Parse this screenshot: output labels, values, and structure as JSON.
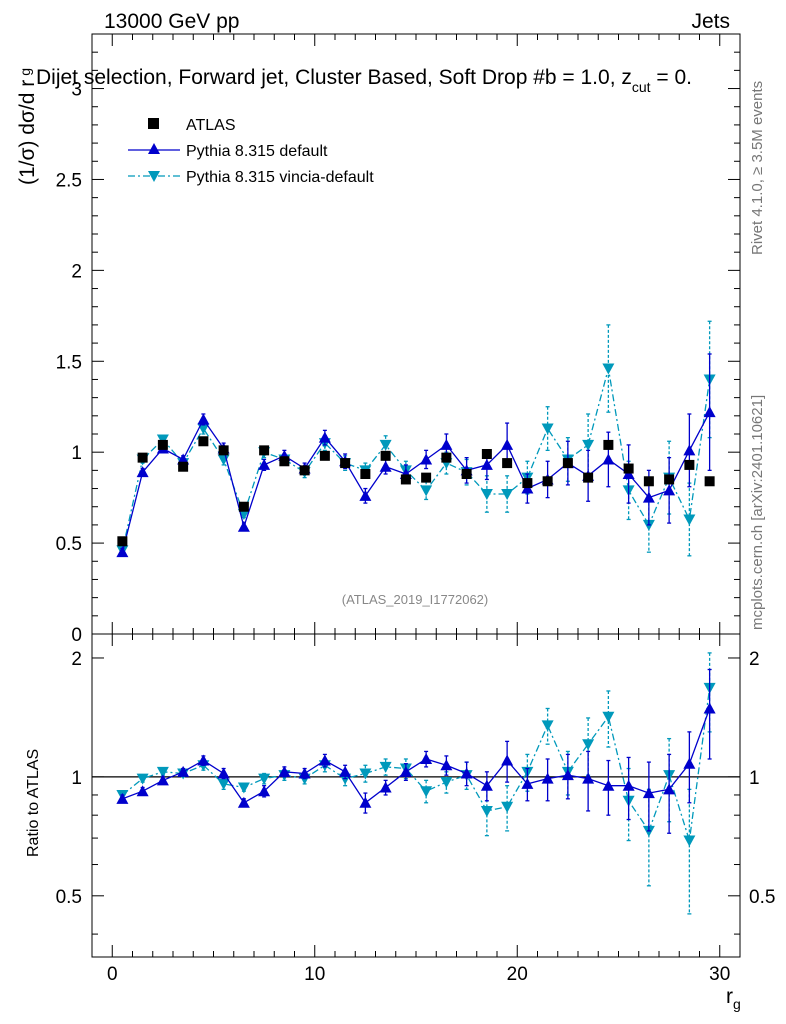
{
  "header": {
    "left": "13000 GeV pp",
    "right": "Jets",
    "title": "Dijet selection, Forward jet, Cluster Based, Soft Drop #b = 1.0, z_cut = 0.",
    "title_main": "Dijet selection, Forward jet, Cluster Based, Soft Drop #b",
    "title_eq": " = 1.0, z",
    "title_sub": "cut",
    "title_tail": " = 0.",
    "watermark": "(ATLAS_2019_I1772062)",
    "side_rivet": "Rivet 4.1.0, ≥ 3.5M events",
    "side_mcplots": "mcplots.cern.ch [arXiv:2401.10621]"
  },
  "colors": {
    "atlas": "#000000",
    "default": "#0000cc",
    "vincia": "#0099bb"
  },
  "chart_data": [
    {
      "type": "scatter",
      "panel": "main",
      "ylabel": "(1/σ) dσ/d r_g",
      "ylabel_main": "(1/σ) dσ/d r",
      "ylabel_sub": "g",
      "xlim": [
        -1,
        31
      ],
      "ylim": [
        0,
        3.3
      ],
      "yticks": [
        0,
        0.5,
        1,
        1.5,
        2,
        2.5,
        3
      ],
      "ytick_labels": [
        "0",
        "0.5",
        "1",
        "1.5",
        "2",
        "2.5",
        "3"
      ],
      "legend": [
        "ATLAS",
        "Pythia 8.315 default",
        "Pythia 8.315 vincia-default"
      ],
      "x": [
        0.5,
        1.5,
        2.5,
        3.5,
        4.5,
        5.5,
        6.5,
        7.5,
        8.5,
        9.5,
        10.5,
        11.5,
        12.5,
        13.5,
        14.5,
        15.5,
        16.5,
        17.5,
        18.5,
        19.5,
        20.5,
        21.5,
        22.5,
        23.5,
        24.5,
        25.5,
        26.5,
        27.5,
        28.5,
        29.5
      ],
      "series": [
        {
          "name": "ATLAS",
          "values": [
            0.51,
            0.97,
            1.04,
            0.92,
            1.06,
            1.01,
            0.7,
            1.01,
            0.95,
            0.9,
            0.98,
            0.94,
            0.88,
            0.98,
            0.85,
            0.86,
            0.97,
            0.88,
            0.99,
            0.94,
            0.83,
            0.84,
            0.94,
            0.86,
            1.04,
            0.91,
            0.84,
            0.85,
            0.93,
            0.84
          ],
          "errors": [
            0,
            0,
            0,
            0,
            0,
            0,
            0,
            0,
            0,
            0,
            0,
            0,
            0,
            0,
            0,
            0,
            0,
            0,
            0,
            0,
            0,
            0,
            0,
            0,
            0,
            0,
            0,
            0,
            0,
            0
          ]
        },
        {
          "name": "Pythia 8.315 default",
          "values": [
            0.45,
            0.89,
            1.02,
            0.96,
            1.18,
            1.02,
            0.59,
            0.93,
            0.98,
            0.91,
            1.08,
            0.95,
            0.76,
            0.92,
            0.88,
            0.96,
            1.04,
            0.9,
            0.93,
            1.04,
            0.8,
            0.85,
            0.94,
            0.87,
            0.96,
            0.88,
            0.75,
            0.79,
            1.01,
            1.22
          ],
          "errors": [
            0.02,
            0.02,
            0.02,
            0.02,
            0.03,
            0.03,
            0.02,
            0.03,
            0.03,
            0.03,
            0.04,
            0.04,
            0.04,
            0.04,
            0.05,
            0.05,
            0.06,
            0.07,
            0.08,
            0.12,
            0.08,
            0.1,
            0.12,
            0.14,
            0.15,
            0.16,
            0.15,
            0.18,
            0.2,
            0.32
          ]
        },
        {
          "name": "Pythia 8.315 vincia-default",
          "values": [
            0.46,
            0.96,
            1.07,
            0.94,
            1.13,
            0.96,
            0.66,
            1.0,
            0.96,
            0.89,
            1.05,
            0.94,
            0.9,
            1.04,
            0.9,
            0.79,
            0.94,
            0.89,
            0.77,
            0.77,
            0.86,
            1.13,
            0.96,
            1.04,
            1.46,
            0.79,
            0.6,
            0.86,
            0.63,
            1.4
          ],
          "errors": [
            0.02,
            0.02,
            0.02,
            0.02,
            0.03,
            0.03,
            0.02,
            0.03,
            0.03,
            0.03,
            0.04,
            0.04,
            0.04,
            0.05,
            0.05,
            0.05,
            0.06,
            0.07,
            0.1,
            0.1,
            0.09,
            0.12,
            0.12,
            0.17,
            0.24,
            0.16,
            0.15,
            0.2,
            0.2,
            0.32
          ]
        }
      ]
    },
    {
      "type": "scatter",
      "panel": "ratio",
      "ylabel": "Ratio to ATLAS",
      "xlabel": "r_g",
      "xlabel_main": "r",
      "xlabel_sub": "g",
      "xlim": [
        -1,
        31
      ],
      "ylim": [
        0.35,
        2.3
      ],
      "yticks": [
        0.5,
        1,
        2
      ],
      "ytick_labels": [
        "0.5",
        "1",
        "2"
      ],
      "xticks": [
        0,
        10,
        20,
        30
      ],
      "xtick_labels": [
        "0",
        "10",
        "20",
        "30"
      ],
      "x": [
        0.5,
        1.5,
        2.5,
        3.5,
        4.5,
        5.5,
        6.5,
        7.5,
        8.5,
        9.5,
        10.5,
        11.5,
        12.5,
        13.5,
        14.5,
        15.5,
        16.5,
        17.5,
        18.5,
        19.5,
        20.5,
        21.5,
        22.5,
        23.5,
        24.5,
        25.5,
        26.5,
        27.5,
        28.5,
        29.5
      ],
      "series": [
        {
          "name": "Pythia 8.315 default",
          "values": [
            0.88,
            0.92,
            0.98,
            1.03,
            1.1,
            1.02,
            0.86,
            0.92,
            1.03,
            1.02,
            1.1,
            1.03,
            0.86,
            0.94,
            1.03,
            1.11,
            1.07,
            1.02,
            0.95,
            1.1,
            0.96,
            0.99,
            1.01,
            0.99,
            0.95,
            0.95,
            0.91,
            0.93,
            1.08,
            1.49
          ],
          "errors": [
            0.02,
            0.02,
            0.02,
            0.02,
            0.03,
            0.03,
            0.02,
            0.03,
            0.03,
            0.03,
            0.04,
            0.04,
            0.05,
            0.04,
            0.05,
            0.05,
            0.06,
            0.07,
            0.08,
            0.13,
            0.09,
            0.12,
            0.13,
            0.17,
            0.15,
            0.17,
            0.18,
            0.21,
            0.22,
            0.38
          ]
        },
        {
          "name": "Pythia 8.315 vincia-default",
          "values": [
            0.9,
            0.99,
            1.03,
            1.02,
            1.07,
            0.96,
            0.94,
            0.99,
            1.01,
            0.99,
            1.07,
            0.99,
            1.02,
            1.06,
            1.05,
            0.92,
            0.97,
            1.01,
            0.82,
            0.84,
            1.03,
            1.35,
            1.03,
            1.21,
            1.42,
            0.87,
            0.73,
            1.01,
            0.69,
            1.68
          ],
          "errors": [
            0.02,
            0.02,
            0.02,
            0.02,
            0.03,
            0.03,
            0.02,
            0.03,
            0.03,
            0.03,
            0.04,
            0.04,
            0.05,
            0.05,
            0.06,
            0.06,
            0.06,
            0.08,
            0.11,
            0.11,
            0.11,
            0.14,
            0.13,
            0.2,
            0.23,
            0.18,
            0.2,
            0.24,
            0.24,
            0.38
          ]
        }
      ]
    }
  ]
}
